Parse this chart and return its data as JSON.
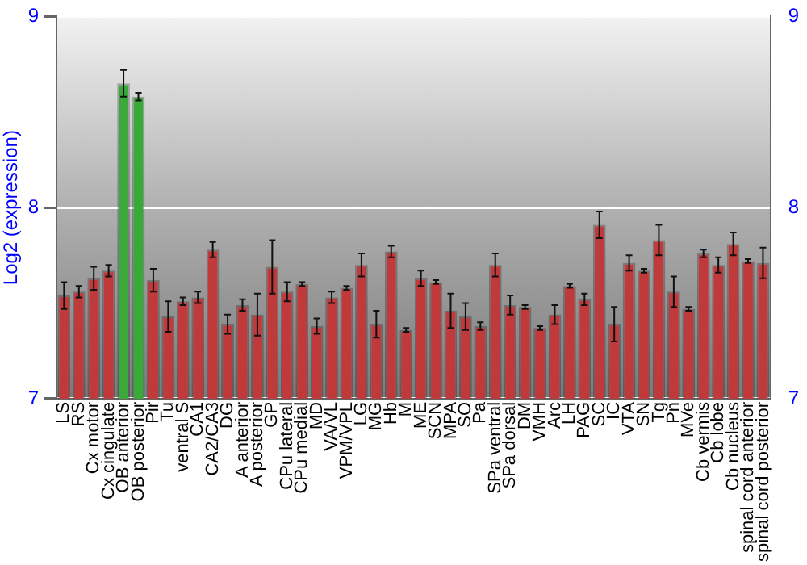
{
  "chart_data": {
    "type": "bar",
    "ylabel": "Log2 (expression)",
    "categories": [
      "LS",
      "RS",
      "Cx motor",
      "Cx cingulate",
      "OB anterior",
      "OB posterior",
      "Pir",
      "Tu",
      "ventral S",
      "CA1",
      "CA2/CA3",
      "DG",
      "A anterior",
      "A posterior",
      "GP",
      "CPu lateral",
      "CPu medial",
      "MD",
      "VA/VL",
      "VPM/VPL",
      "LG",
      "MG",
      "Hb",
      "M",
      "ME",
      "SCN",
      "MPA",
      "SO",
      "Pa",
      "SPa ventral",
      "SPa dorsal",
      "DM",
      "VMH",
      "Arc",
      "LH",
      "PAG",
      "SC",
      "IC",
      "VTA",
      "SN",
      "Tg",
      "Pn",
      "MVe",
      "Cb vermis",
      "Cb lobe",
      "Cb nucleus",
      "spinal cord anterior",
      "spinal cord posterior"
    ],
    "values": [
      7.54,
      7.56,
      7.63,
      7.67,
      8.65,
      8.58,
      7.62,
      7.43,
      7.51,
      7.53,
      7.78,
      7.39,
      7.49,
      7.44,
      7.69,
      7.56,
      7.6,
      7.38,
      7.53,
      7.58,
      7.7,
      7.39,
      7.77,
      7.36,
      7.63,
      7.61,
      7.46,
      7.43,
      7.38,
      7.7,
      7.49,
      7.48,
      7.37,
      7.44,
      7.59,
      7.52,
      7.91,
      7.39,
      7.71,
      7.67,
      7.83,
      7.56,
      7.47,
      7.76,
      7.7,
      7.81,
      7.72,
      7.71
    ],
    "errors": [
      0.07,
      0.03,
      0.06,
      0.03,
      0.07,
      0.02,
      0.06,
      0.08,
      0.02,
      0.03,
      0.04,
      0.05,
      0.03,
      0.11,
      0.14,
      0.05,
      0.01,
      0.04,
      0.03,
      0.01,
      0.06,
      0.07,
      0.03,
      0.01,
      0.04,
      0.01,
      0.09,
      0.07,
      0.02,
      0.06,
      0.05,
      0.01,
      0.01,
      0.05,
      0.01,
      0.03,
      0.07,
      0.09,
      0.04,
      0.01,
      0.08,
      0.08,
      0.01,
      0.02,
      0.04,
      0.06,
      0.01,
      0.08
    ],
    "colors": [
      "#c0393b",
      "#c0393b",
      "#c0393b",
      "#c0393b",
      "#3aa83a",
      "#3aa83a",
      "#c0393b",
      "#c0393b",
      "#c0393b",
      "#c0393b",
      "#c0393b",
      "#c0393b",
      "#c0393b",
      "#c0393b",
      "#c0393b",
      "#c0393b",
      "#c0393b",
      "#c0393b",
      "#c0393b",
      "#c0393b",
      "#c0393b",
      "#c0393b",
      "#c0393b",
      "#c0393b",
      "#c0393b",
      "#c0393b",
      "#c0393b",
      "#c0393b",
      "#c0393b",
      "#c0393b",
      "#c0393b",
      "#c0393b",
      "#c0393b",
      "#c0393b",
      "#c0393b",
      "#c0393b",
      "#c0393b",
      "#c0393b",
      "#c0393b",
      "#c0393b",
      "#c0393b",
      "#c0393b",
      "#c0393b",
      "#c0393b",
      "#c0393b",
      "#c0393b",
      "#c0393b",
      "#c0393b"
    ],
    "ylim": [
      7,
      9
    ],
    "yticks": [
      7,
      8,
      9
    ],
    "y2lim": [
      7,
      9
    ],
    "y2ticks": [
      7,
      8,
      9
    ],
    "grid": "y",
    "legend": false
  }
}
